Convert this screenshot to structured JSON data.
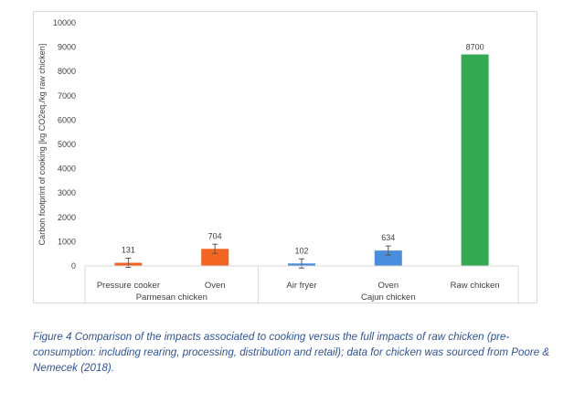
{
  "chart_data": {
    "type": "bar",
    "ylabel": "Carbon footprint of cooking [kg CO2eq./kg raw chicken]",
    "ylim": [
      0,
      10000
    ],
    "yticks": [
      0,
      1000,
      2000,
      3000,
      4000,
      5000,
      6000,
      7000,
      8000,
      9000,
      10000
    ],
    "grid": false,
    "legend": "none",
    "categories": [
      "Pressure cooker",
      "Oven",
      "Air fryer",
      "Oven",
      "Raw chicken"
    ],
    "groups": [
      {
        "label": "Parmesan chicken",
        "category_indices": [
          0,
          1
        ]
      },
      {
        "label": "Cajun chicken",
        "category_indices": [
          2,
          3,
          4
        ]
      }
    ],
    "values": [
      131,
      704,
      102,
      634,
      8700
    ],
    "data_labels": [
      "131",
      "704",
      "102",
      "634",
      "8700"
    ],
    "error_bars": [
      true,
      true,
      true,
      true,
      false
    ],
    "colors": [
      "#f26522",
      "#f26522",
      "#4a8ddc",
      "#4a8ddc",
      "#34a853"
    ]
  },
  "caption": "Figure 4 Comparison of the impacts associated to cooking versus the full impacts of raw chicken (pre-consumption: including rearing, processing, distribution and retail); data for chicken was sourced from Poore & Nemecek (2018)."
}
